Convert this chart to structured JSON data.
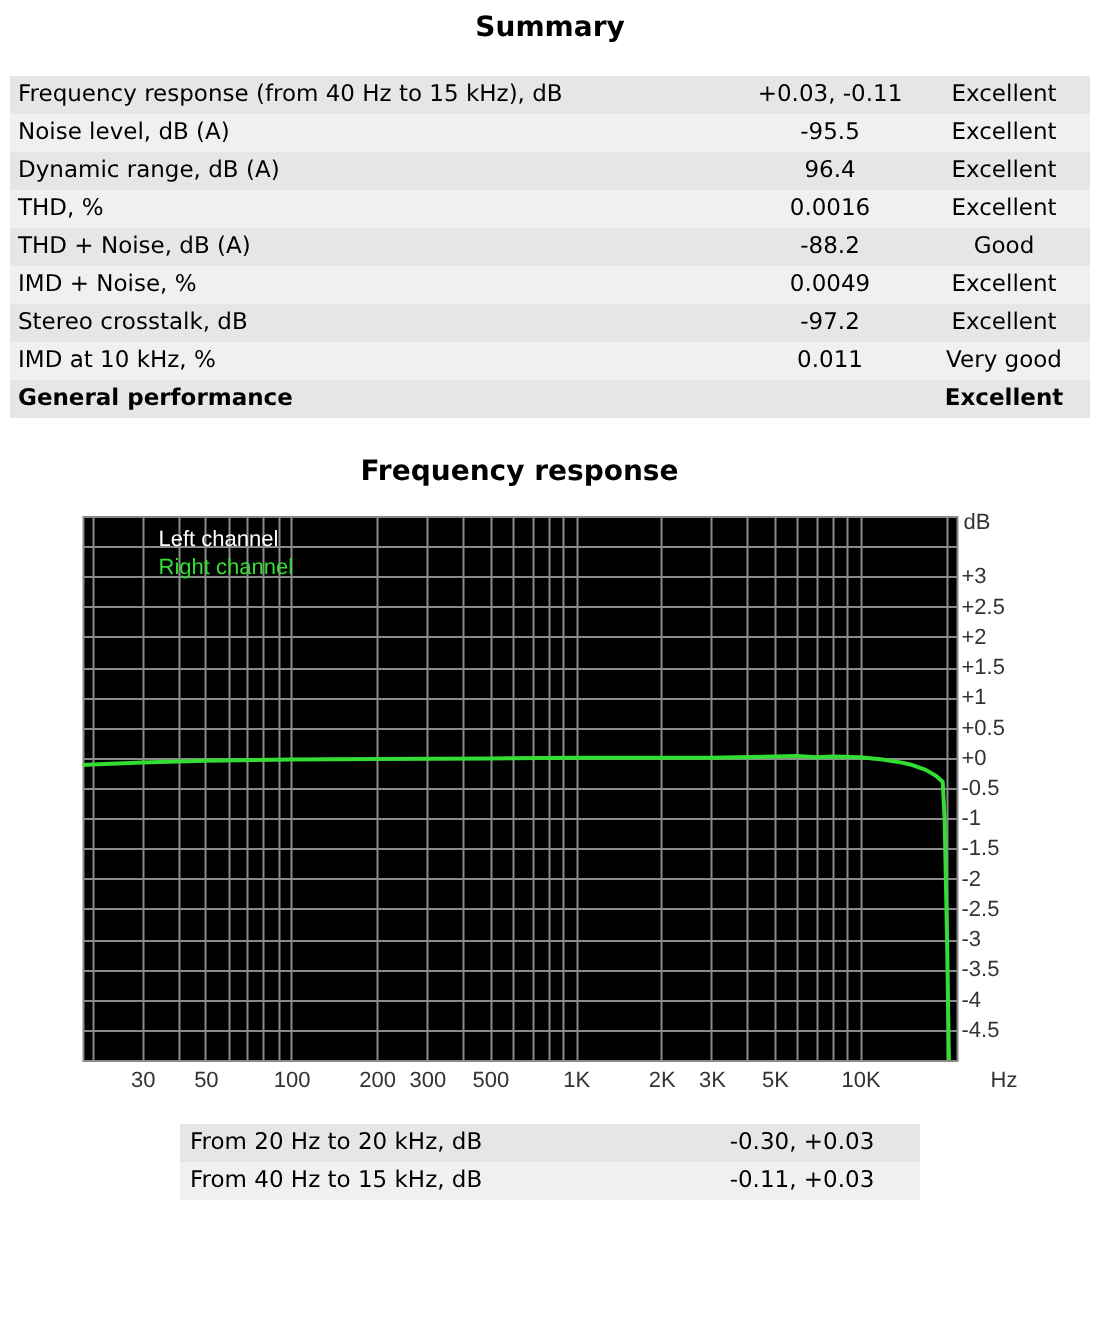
{
  "chart_data": {
    "type": "line",
    "title": "Frequency response",
    "xlabel": "Hz",
    "ylabel": "dB",
    "x": [
      18.5,
      20,
      30,
      50,
      100,
      200,
      500,
      1000,
      2000,
      3000,
      5000,
      6000,
      7000,
      8000,
      10000,
      12000,
      14000,
      15000,
      17000,
      18500,
      19500,
      19800,
      20200,
      20500
    ],
    "series": [
      {
        "name": "Left channel",
        "color": "#ffffff",
        "values": [
          null,
          null,
          null,
          null,
          null,
          null,
          null,
          null,
          null,
          null,
          null,
          null,
          null,
          null,
          null,
          null,
          null,
          null,
          null,
          null,
          null,
          null,
          null,
          null
        ]
      },
      {
        "name": "Right channel",
        "color": "#33dd33",
        "values": [
          -0.12,
          -0.11,
          -0.08,
          -0.05,
          -0.03,
          -0.02,
          -0.01,
          0,
          0,
          0,
          0.02,
          0.03,
          0.01,
          0.02,
          0.01,
          -0.03,
          -0.08,
          -0.11,
          -0.2,
          -0.3,
          -0.4,
          -1.0,
          -3.0,
          -5.0
        ]
      }
    ],
    "xlim": [
      18.5,
      21800
    ],
    "ylim": [
      -5,
      4
    ],
    "log": "x",
    "grid": true,
    "legend": "top left",
    "line_style": "solid",
    "xticks": [
      {
        "value": 20,
        "label": null
      },
      {
        "value": 30,
        "label": "30"
      },
      {
        "value": 40,
        "label": null
      },
      {
        "value": 50,
        "label": "50"
      },
      {
        "value": 60,
        "label": null
      },
      {
        "value": 70,
        "label": null
      },
      {
        "value": 80,
        "label": null
      },
      {
        "value": 90,
        "label": null
      },
      {
        "value": 100,
        "label": "100"
      },
      {
        "value": 200,
        "label": "200"
      },
      {
        "value": 300,
        "label": "300"
      },
      {
        "value": 400,
        "label": null
      },
      {
        "value": 500,
        "label": "500"
      },
      {
        "value": 600,
        "label": null
      },
      {
        "value": 700,
        "label": null
      },
      {
        "value": 800,
        "label": null
      },
      {
        "value": 900,
        "label": null
      },
      {
        "value": 1000,
        "label": "1K"
      },
      {
        "value": 2000,
        "label": "2K"
      },
      {
        "value": 3000,
        "label": "3K"
      },
      {
        "value": 4000,
        "label": null
      },
      {
        "value": 5000,
        "label": "5K"
      },
      {
        "value": 6000,
        "label": null
      },
      {
        "value": 7000,
        "label": null
      },
      {
        "value": 8000,
        "label": null
      },
      {
        "value": 9000,
        "label": null
      },
      {
        "value": 10000,
        "label": "10K"
      },
      {
        "value": 20000,
        "label": null
      }
    ],
    "yticks": [
      {
        "value": 3.5,
        "label": null
      },
      {
        "value": 3,
        "label": "+3"
      },
      {
        "value": 2.5,
        "label": "+2.5"
      },
      {
        "value": 2,
        "label": "+2"
      },
      {
        "value": 1.5,
        "label": "+1.5"
      },
      {
        "value": 1,
        "label": "+1"
      },
      {
        "value": 0.5,
        "label": "+0.5"
      },
      {
        "value": 0,
        "label": "+0"
      },
      -0.5,
      -1,
      -1.5,
      -2,
      -2.5,
      -3,
      -3.5,
      -4,
      -4.5
    ],
    "annotations": [
      "Summary",
      "Frequency response (from 40 Hz to 15 kHz), dB\t+0.03, -0.11\tExcellent",
      "Noise level, dB (A)\t-95.5\tExcellent",
      "Dynamic range, dB (A)\t96.4\tExcellent",
      "THD, %\t0.0016\tExcellent",
      "THD + Noise, dB (A)\t-88.2\tGood",
      "IMD + Noise, %\t0.0049\tExcellent",
      "Stereo crosstalk, dB\t-97.2\tExcellent",
      "IMD at 10 kHz, %\t0.011\tVery good",
      "General performance\t\tExcellent",
      "From 20 Hz to 20 kHz, dB\t-0.30, +0.03",
      "From 40 Hz to 15 kHz, dB\t-0.11, +0.03"
    ]
  }
}
